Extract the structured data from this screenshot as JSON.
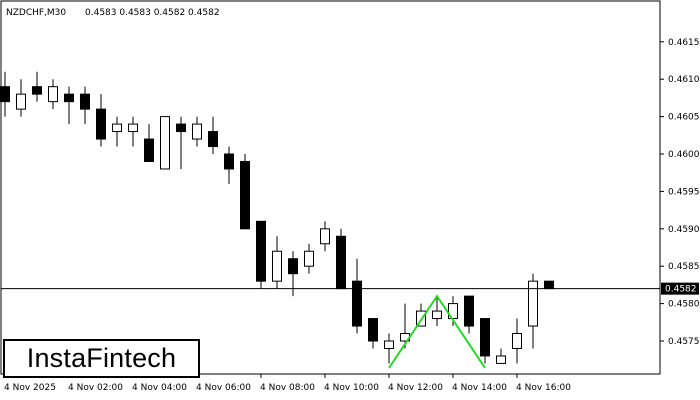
{
  "header": {
    "symbol": "NZDCHF,M30",
    "ohlc": "0.4583 0.4583 0.4582 0.4582"
  },
  "logo": {
    "text": "InstaFintech"
  },
  "colors": {
    "bull": "#ffffff",
    "bear": "#000000",
    "pattern": "#22dd22",
    "line": "#000000"
  },
  "chart_data": {
    "type": "candlestick",
    "title": "NZDCHF,M30",
    "ylim": [
      0.45713,
      0.46205
    ],
    "yticks": [
      0.4575,
      0.458,
      0.4585,
      0.459,
      0.4595,
      0.46,
      0.4605,
      0.461,
      0.4615
    ],
    "ytick_labels": [
      "0.4575",
      "0.4580",
      "0.4585",
      "0.4590",
      "0.4595",
      "0.4600",
      "0.4605",
      "0.4610",
      "0.4615"
    ],
    "xtick_labels": [
      {
        "bar": 0,
        "label": "4 Nov 2025"
      },
      {
        "bar": 4,
        "label": "4 Nov 02:00"
      },
      {
        "bar": 8,
        "label": "4 Nov 04:00"
      },
      {
        "bar": 12,
        "label": "4 Nov 06:00"
      },
      {
        "bar": 16,
        "label": "4 Nov 08:00"
      },
      {
        "bar": 20,
        "label": "4 Nov 10:00"
      },
      {
        "bar": 24,
        "label": "4 Nov 12:00"
      },
      {
        "bar": 28,
        "label": "4 Nov 14:00"
      },
      {
        "bar": 32,
        "label": "4 Nov 16:00"
      }
    ],
    "candles": [
      {
        "o": 0.4609,
        "h": 0.4611,
        "l": 0.4605,
        "c": 0.4607
      },
      {
        "o": 0.4606,
        "h": 0.461,
        "l": 0.4605,
        "c": 0.4608
      },
      {
        "o": 0.4609,
        "h": 0.4611,
        "l": 0.4607,
        "c": 0.4608
      },
      {
        "o": 0.4607,
        "h": 0.461,
        "l": 0.4606,
        "c": 0.4609
      },
      {
        "o": 0.4608,
        "h": 0.4609,
        "l": 0.4604,
        "c": 0.4607
      },
      {
        "o": 0.4608,
        "h": 0.4609,
        "l": 0.4604,
        "c": 0.4606
      },
      {
        "o": 0.4606,
        "h": 0.4608,
        "l": 0.4601,
        "c": 0.4602
      },
      {
        "o": 0.4603,
        "h": 0.4605,
        "l": 0.4601,
        "c": 0.4604
      },
      {
        "o": 0.4603,
        "h": 0.4605,
        "l": 0.4601,
        "c": 0.4604
      },
      {
        "o": 0.4602,
        "h": 0.4604,
        "l": 0.4599,
        "c": 0.4599
      },
      {
        "o": 0.4598,
        "h": 0.4605,
        "l": 0.4598,
        "c": 0.4605
      },
      {
        "o": 0.4604,
        "h": 0.4605,
        "l": 0.4598,
        "c": 0.4603
      },
      {
        "o": 0.4602,
        "h": 0.4605,
        "l": 0.4601,
        "c": 0.4604
      },
      {
        "o": 0.4603,
        "h": 0.4605,
        "l": 0.46,
        "c": 0.4601
      },
      {
        "o": 0.46,
        "h": 0.4601,
        "l": 0.4596,
        "c": 0.4598
      },
      {
        "o": 0.4599,
        "h": 0.46,
        "l": 0.459,
        "c": 0.459
      },
      {
        "o": 0.4591,
        "h": 0.4591,
        "l": 0.4582,
        "c": 0.4583
      },
      {
        "o": 0.4583,
        "h": 0.4589,
        "l": 0.4582,
        "c": 0.4587
      },
      {
        "o": 0.4586,
        "h": 0.4587,
        "l": 0.4581,
        "c": 0.4584
      },
      {
        "o": 0.4585,
        "h": 0.4588,
        "l": 0.4584,
        "c": 0.4587
      },
      {
        "o": 0.4588,
        "h": 0.4591,
        "l": 0.4587,
        "c": 0.459
      },
      {
        "o": 0.4589,
        "h": 0.459,
        "l": 0.4582,
        "c": 0.4582
      },
      {
        "o": 0.4583,
        "h": 0.4586,
        "l": 0.4576,
        "c": 0.4577
      },
      {
        "o": 0.4578,
        "h": 0.4578,
        "l": 0.4574,
        "c": 0.4575
      },
      {
        "o": 0.4574,
        "h": 0.4576,
        "l": 0.4572,
        "c": 0.4575
      },
      {
        "o": 0.4575,
        "h": 0.458,
        "l": 0.4574,
        "c": 0.4576
      },
      {
        "o": 0.4577,
        "h": 0.458,
        "l": 0.4577,
        "c": 0.4579
      },
      {
        "o": 0.4578,
        "h": 0.4581,
        "l": 0.4577,
        "c": 0.4579
      },
      {
        "o": 0.4578,
        "h": 0.4581,
        "l": 0.4577,
        "c": 0.458
      },
      {
        "o": 0.4581,
        "h": 0.4581,
        "l": 0.4576,
        "c": 0.4577
      },
      {
        "o": 0.4578,
        "h": 0.4578,
        "l": 0.4572,
        "c": 0.4573
      },
      {
        "o": 0.4572,
        "h": 0.4574,
        "l": 0.4572,
        "c": 0.4573
      },
      {
        "o": 0.4574,
        "h": 0.4578,
        "l": 0.4572,
        "c": 0.4576
      },
      {
        "o": 0.4577,
        "h": 0.4584,
        "l": 0.4574,
        "c": 0.4583
      },
      {
        "o": 0.4583,
        "h": 0.4583,
        "l": 0.4582,
        "c": 0.4582
      }
    ],
    "price_line": 0.4582,
    "price_label": "0.4582",
    "pattern": {
      "name": "",
      "points": [
        {
          "bar": 24,
          "price": 0.45714
        },
        {
          "bar": 27,
          "price": 0.4581
        },
        {
          "bar": 30,
          "price": 0.45714
        }
      ]
    }
  }
}
